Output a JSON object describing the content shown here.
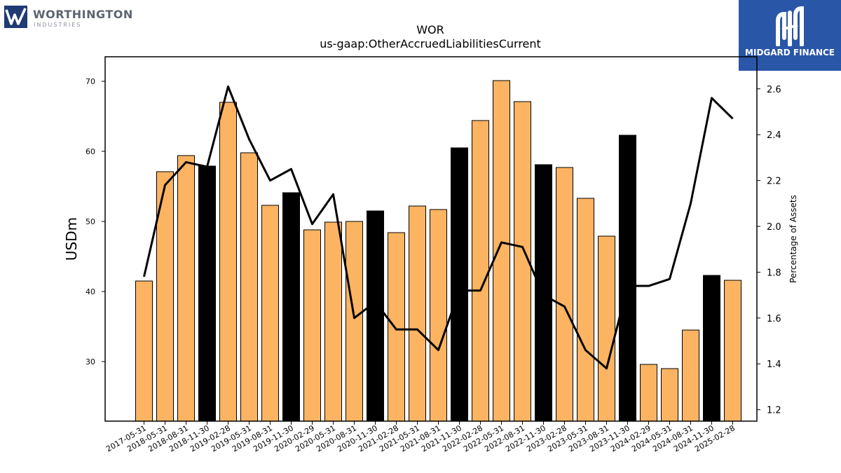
{
  "brand_left": {
    "name": "WORTHINGTON",
    "sub": "INDUSTRIES",
    "icon": "worthington-w-icon",
    "color": "#1f3b73"
  },
  "brand_right": {
    "name": "MIDGARD FINANCE",
    "icon": "midgard-m-icon",
    "color": "#2a56a8"
  },
  "chart_data": {
    "type": "bar",
    "title": "WOR",
    "subtitle": "us-gaap:OtherAccruedLiabilitiesCurrent",
    "ylabel": "USDm",
    "y2label": "Percentage of Assets",
    "ylim": [
      21.5,
      73.5
    ],
    "y2lim": [
      1.15,
      2.74
    ],
    "yticks": [
      30,
      40,
      50,
      60,
      70
    ],
    "y2ticks": [
      1.2,
      1.4,
      1.6,
      1.8,
      2.0,
      2.2,
      2.4,
      2.6
    ],
    "y2tick_labels": [
      "1.2",
      "1.4",
      "1.6",
      "1.8",
      "2.0",
      "2.2",
      "2.4",
      "2.6"
    ],
    "colors": {
      "bar": "#fdb462",
      "bar_highlight": "#000000",
      "line": "#000000"
    },
    "categories": [
      "2017-05-31",
      "2018-05-31",
      "2018-08-31",
      "2018-11-30",
      "2019-02-28",
      "2019-05-31",
      "2019-08-31",
      "2019-11-30",
      "2020-02-29",
      "2020-05-31",
      "2020-08-31",
      "2020-11-30",
      "2021-02-28",
      "2021-05-31",
      "2021-08-31",
      "2021-11-30",
      "2022-02-28",
      "2022-05-31",
      "2022-08-31",
      "2022-11-30",
      "2023-02-28",
      "2023-05-31",
      "2023-08-31",
      "2023-11-30",
      "2024-02-29",
      "2024-05-31",
      "2024-08-31",
      "2024-11-30",
      "2025-02-28"
    ],
    "series": [
      {
        "kind": "bar",
        "values": [
          41.5,
          57.1,
          59.4,
          57.9,
          67.0,
          59.8,
          52.3,
          54.1,
          48.8,
          49.9,
          50.0,
          51.5,
          48.4,
          52.2,
          51.7,
          60.5,
          64.4,
          70.1,
          67.1,
          58.1,
          57.7,
          53.3,
          47.9,
          62.3,
          29.6,
          29.0,
          34.5,
          42.3,
          41.6
        ],
        "highlight": [
          false,
          false,
          false,
          true,
          false,
          false,
          false,
          true,
          false,
          false,
          false,
          true,
          false,
          false,
          false,
          true,
          false,
          false,
          false,
          true,
          false,
          false,
          false,
          true,
          false,
          false,
          false,
          true,
          false
        ]
      },
      {
        "kind": "line",
        "axis": "right",
        "values": [
          1.78,
          2.18,
          2.28,
          2.26,
          2.61,
          2.38,
          2.2,
          2.25,
          2.01,
          2.14,
          1.6,
          1.67,
          1.55,
          1.55,
          1.46,
          1.72,
          1.72,
          1.93,
          1.91,
          1.7,
          1.65,
          1.46,
          1.38,
          1.74,
          1.74,
          1.77,
          2.1,
          2.56,
          2.47
        ]
      }
    ]
  }
}
